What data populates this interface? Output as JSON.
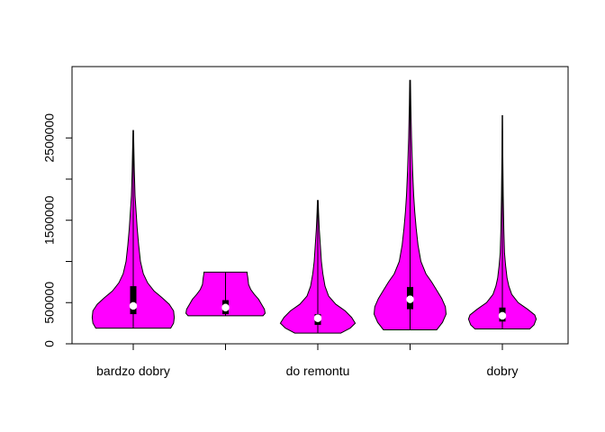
{
  "chart_data": {
    "type": "violin",
    "title": "",
    "xlabel": "",
    "ylabel": "",
    "ylim": [
      0,
      3000000
    ],
    "y_ticks": [
      0,
      500000,
      1000000,
      1500000,
      2000000,
      2500000
    ],
    "y_tick_labels": [
      "0",
      "500000",
      "",
      "1500000",
      "",
      "2500000"
    ],
    "categories": [
      "bardzo dobry",
      "",
      "do remontu",
      "",
      "dobry"
    ],
    "grid": false,
    "legend": "none",
    "fill_color": "#ff00ff",
    "outline_color": "#000000",
    "median_color": "#ffffff",
    "series": [
      {
        "min": 190000,
        "q1": 360000,
        "median": 460000,
        "q3": 700000,
        "max": 2590000,
        "profile": [
          [
            190000,
            0.52
          ],
          [
            250000,
            0.56
          ],
          [
            320000,
            0.57
          ],
          [
            400000,
            0.56
          ],
          [
            480000,
            0.5
          ],
          [
            560000,
            0.4
          ],
          [
            640000,
            0.29
          ],
          [
            740000,
            0.2
          ],
          [
            850000,
            0.14
          ],
          [
            1000000,
            0.1
          ],
          [
            1200000,
            0.075
          ],
          [
            1400000,
            0.055
          ],
          [
            1600000,
            0.04
          ],
          [
            1800000,
            0.025
          ],
          [
            2100000,
            0.015
          ],
          [
            2400000,
            0.008
          ],
          [
            2590000,
            0.004
          ]
        ]
      },
      {
        "min": 340000,
        "q1": 360000,
        "median": 440000,
        "q3": 530000,
        "max": 870000,
        "profile": [
          [
            340000,
            0.52
          ],
          [
            370000,
            0.55
          ],
          [
            420000,
            0.54
          ],
          [
            480000,
            0.5
          ],
          [
            540000,
            0.46
          ],
          [
            600000,
            0.4
          ],
          [
            660000,
            0.35
          ],
          [
            720000,
            0.32
          ],
          [
            800000,
            0.31
          ],
          [
            855000,
            0.3
          ],
          [
            870000,
            0.3
          ]
        ]
      },
      {
        "min": 130000,
        "q1": 230000,
        "median": 310000,
        "q3": 360000,
        "max": 1740000,
        "profile": [
          [
            130000,
            0.32
          ],
          [
            190000,
            0.45
          ],
          [
            250000,
            0.52
          ],
          [
            320000,
            0.47
          ],
          [
            400000,
            0.38
          ],
          [
            480000,
            0.25
          ],
          [
            580000,
            0.15
          ],
          [
            700000,
            0.1
          ],
          [
            850000,
            0.07
          ],
          [
            1000000,
            0.05
          ],
          [
            1200000,
            0.035
          ],
          [
            1400000,
            0.02
          ],
          [
            1600000,
            0.01
          ],
          [
            1740000,
            0.005
          ]
        ]
      },
      {
        "min": 170000,
        "q1": 420000,
        "median": 540000,
        "q3": 690000,
        "max": 3200000,
        "profile": [
          [
            170000,
            0.37
          ],
          [
            260000,
            0.45
          ],
          [
            360000,
            0.5
          ],
          [
            450000,
            0.49
          ],
          [
            550000,
            0.44
          ],
          [
            650000,
            0.37
          ],
          [
            750000,
            0.3
          ],
          [
            850000,
            0.22
          ],
          [
            1000000,
            0.15
          ],
          [
            1200000,
            0.11
          ],
          [
            1400000,
            0.085
          ],
          [
            1600000,
            0.065
          ],
          [
            1800000,
            0.05
          ],
          [
            2100000,
            0.035
          ],
          [
            2500000,
            0.02
          ],
          [
            2900000,
            0.01
          ],
          [
            3200000,
            0.005
          ]
        ]
      },
      {
        "min": 180000,
        "q1": 270000,
        "median": 340000,
        "q3": 440000,
        "max": 2770000,
        "profile": [
          [
            180000,
            0.38
          ],
          [
            230000,
            0.44
          ],
          [
            300000,
            0.47
          ],
          [
            350000,
            0.45
          ],
          [
            420000,
            0.35
          ],
          [
            500000,
            0.22
          ],
          [
            600000,
            0.13
          ],
          [
            700000,
            0.09
          ],
          [
            800000,
            0.065
          ],
          [
            950000,
            0.045
          ],
          [
            1100000,
            0.03
          ],
          [
            1400000,
            0.02
          ],
          [
            1800000,
            0.012
          ],
          [
            2300000,
            0.006
          ],
          [
            2770000,
            0.003
          ]
        ]
      }
    ]
  }
}
